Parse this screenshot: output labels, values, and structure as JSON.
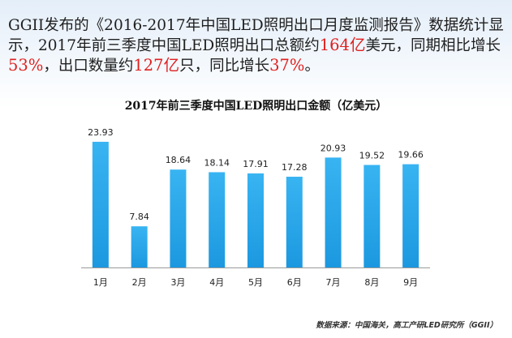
{
  "intro": {
    "p1": "GGII发布的《2016-2017年中国LED照明出口月度监测报告》数据统计显示，2017年前三季度中国LED照明出口总额约",
    "h1": "164亿",
    "p2": "美元，同期相比增长",
    "h2": "53%",
    "p3": "，出口数量约",
    "h3": "127亿",
    "p4": "只，同比增长",
    "h4": "37%",
    "p5": "。"
  },
  "source": "数据来源：中国海关，高工产研LED研究所（GGII）",
  "colors": {
    "bar": "#1f9fe6",
    "highlight": "#e02020",
    "axis": "#9a9a9a"
  },
  "chart_data": {
    "type": "bar",
    "title": "2017年前三季度中国LED照明出口金额（亿美元）",
    "categories": [
      "1月",
      "2月",
      "3月",
      "4月",
      "5月",
      "6月",
      "7月",
      "8月",
      "9月"
    ],
    "values": [
      23.93,
      7.84,
      18.64,
      18.14,
      17.91,
      17.28,
      20.93,
      19.52,
      19.66
    ],
    "value_labels": [
      "23.93",
      "7.84",
      "18.64",
      "18.14",
      "17.91",
      "17.28",
      "20.93",
      "19.52",
      "19.66"
    ],
    "xlabel": "",
    "ylabel": "",
    "ylim": [
      0,
      25
    ],
    "grid": false,
    "legend": "none"
  }
}
